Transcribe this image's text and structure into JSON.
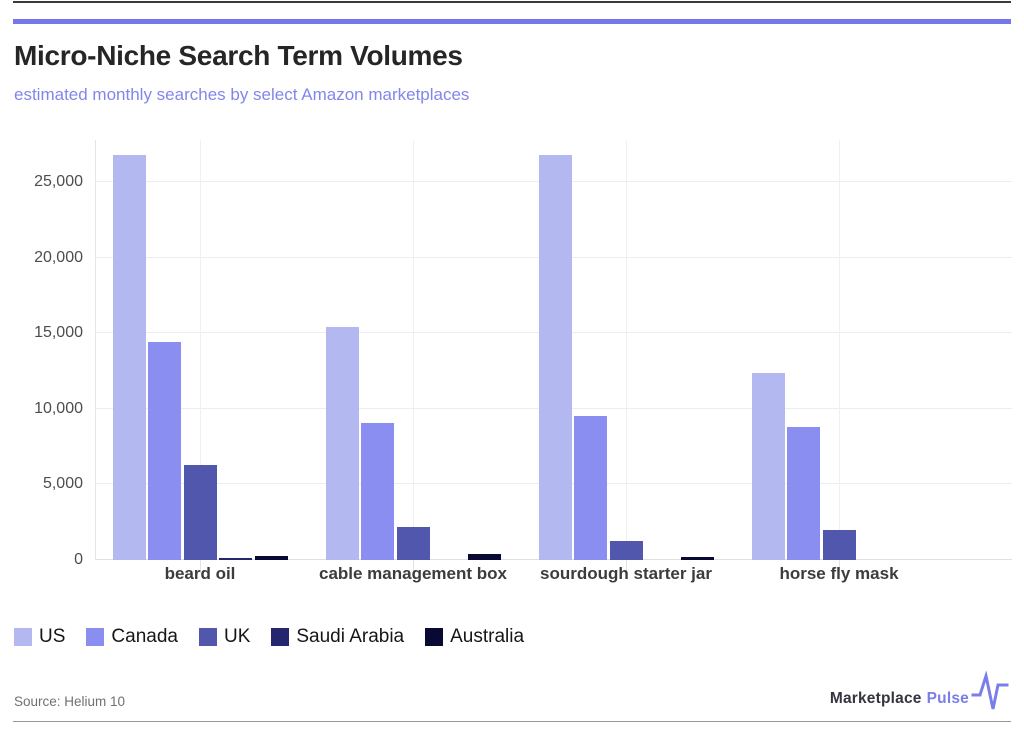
{
  "page": {
    "title": "Micro-Niche Search Term Volumes",
    "subtitle": "estimated monthly searches by select Amazon marketplaces",
    "source": "Source: Helium 10",
    "brand": {
      "name": "Marketplace",
      "accent": "Pulse",
      "icon": "pulse-line-icon",
      "accent_color": "#7a7ee8"
    },
    "accent_line_color": "#7478e6"
  },
  "chart_data": {
    "type": "bar",
    "title": "Micro-Niche Search Term Volumes",
    "subtitle": "estimated monthly searches by select Amazon marketplaces",
    "categories": [
      "beard oil",
      "cable management box",
      "sourdough starter jar",
      "horse fly mask"
    ],
    "series": [
      {
        "name": "US",
        "color": "#b4b8f1",
        "values": [
          26800,
          15400,
          26800,
          12400
        ]
      },
      {
        "name": "Canada",
        "color": "#8a8ef0",
        "values": [
          14400,
          9100,
          9500,
          8800
        ]
      },
      {
        "name": "UK",
        "color": "#5257ae",
        "values": [
          6300,
          2200,
          1250,
          2000
        ]
      },
      {
        "name": "Saudi Arabia",
        "color": "#24276d",
        "values": [
          150,
          0,
          0,
          0
        ]
      },
      {
        "name": "Australia",
        "color": "#090a33",
        "values": [
          250,
          400,
          200,
          0
        ]
      }
    ],
    "ylim": [
      0,
      27800
    ],
    "yticks": [
      0,
      5000,
      10000,
      15000,
      20000,
      25000
    ],
    "ytick_labels": [
      "0",
      "5,000",
      "10,000",
      "15,000",
      "20,000",
      "25,000"
    ],
    "grid": true,
    "legend_position": "bottom"
  }
}
